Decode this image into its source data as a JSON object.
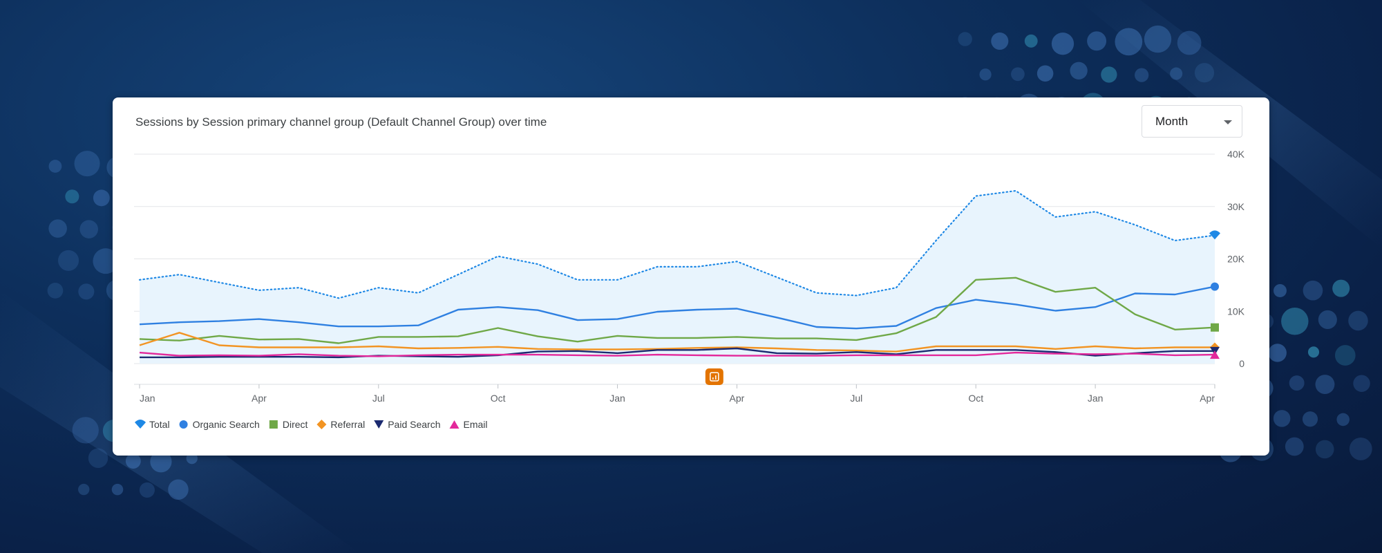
{
  "card": {
    "title": "Sessions by Session primary channel group (Default Channel Group) over time",
    "granularity_select": {
      "selected": "Month"
    }
  },
  "chart_data": {
    "type": "line",
    "x": [
      "Jan",
      "Feb",
      "Mar",
      "Apr",
      "May",
      "Jun",
      "Jul",
      "Aug",
      "Sep",
      "Oct",
      "Nov",
      "Dec",
      "Jan",
      "Feb",
      "Mar",
      "Apr",
      "May",
      "Jun",
      "Jul",
      "Aug",
      "Sep",
      "Oct",
      "Nov",
      "Dec",
      "Jan",
      "Feb",
      "Mar",
      "Apr"
    ],
    "x_tick_labels": [
      {
        "index": 0,
        "label": "Jan"
      },
      {
        "index": 3,
        "label": "Apr"
      },
      {
        "index": 6,
        "label": "Jul"
      },
      {
        "index": 9,
        "label": "Oct"
      },
      {
        "index": 12,
        "label": "Jan"
      },
      {
        "index": 15,
        "label": "Apr"
      },
      {
        "index": 18,
        "label": "Jul"
      },
      {
        "index": 21,
        "label": "Oct"
      },
      {
        "index": 24,
        "label": "Jan"
      },
      {
        "index": 27,
        "label": "Apr"
      }
    ],
    "y_ticks": [
      {
        "value": 0,
        "label": "0"
      },
      {
        "value": 10000,
        "label": "10K"
      },
      {
        "value": 20000,
        "label": "20K"
      },
      {
        "value": 30000,
        "label": "30K"
      },
      {
        "value": 40000,
        "label": "40K"
      }
    ],
    "ylim": [
      0,
      40000
    ],
    "grid": true,
    "y_axis_side": "right",
    "legend_position": "bottom-left",
    "annotation_marker": {
      "index": 14,
      "color": "#e37400"
    },
    "series": [
      {
        "name": "Total",
        "style": "dotted-area",
        "color": "#1e88e5",
        "fill": "#e8f4fd",
        "marker": "pin",
        "values": [
          16000,
          17000,
          15500,
          14000,
          14500,
          12500,
          14500,
          13500,
          17000,
          20500,
          19000,
          16000,
          16000,
          18500,
          18500,
          19500,
          16500,
          13500,
          13000,
          14500,
          23500,
          32000,
          33000,
          28000,
          29000,
          26500,
          23500,
          24500
        ]
      },
      {
        "name": "Organic Search",
        "style": "solid",
        "color": "#2f80e1",
        "marker": "circle",
        "values": [
          7500,
          7900,
          8100,
          8500,
          7900,
          7100,
          7100,
          7300,
          10300,
          10800,
          10200,
          8300,
          8500,
          9900,
          10300,
          10500,
          8800,
          7000,
          6700,
          7200,
          10600,
          12200,
          11300,
          10100,
          10800,
          13400,
          13200,
          14700
        ]
      },
      {
        "name": "Direct",
        "style": "solid",
        "color": "#6fa847",
        "marker": "square",
        "values": [
          4700,
          4400,
          5300,
          4600,
          4700,
          3900,
          5100,
          5100,
          5200,
          6800,
          5200,
          4200,
          5300,
          4900,
          4900,
          5100,
          4800,
          4800,
          4500,
          5800,
          8900,
          16000,
          16400,
          13700,
          14500,
          9400,
          6500,
          6900
        ]
      },
      {
        "name": "Referral",
        "style": "solid",
        "color": "#f29423",
        "marker": "diamond",
        "values": [
          3500,
          5900,
          3500,
          3100,
          3100,
          3100,
          3300,
          2900,
          3000,
          3200,
          2800,
          2700,
          2700,
          2800,
          3000,
          3100,
          2900,
          2600,
          2500,
          2300,
          3300,
          3300,
          3300,
          2800,
          3300,
          2900,
          3100,
          3100
        ]
      },
      {
        "name": "Paid Search",
        "style": "solid",
        "color": "#1b2a70",
        "marker": "triangle-down",
        "values": [
          1200,
          1200,
          1300,
          1300,
          1300,
          1200,
          1500,
          1400,
          1300,
          1600,
          2300,
          2400,
          2000,
          2600,
          2600,
          2900,
          2000,
          1900,
          2200,
          1800,
          2600,
          2600,
          2600,
          2200,
          1500,
          2000,
          2400,
          2400
        ]
      },
      {
        "name": "Email",
        "style": "solid",
        "color": "#e3289b",
        "marker": "triangle-up",
        "values": [
          2100,
          1500,
          1600,
          1500,
          1800,
          1500,
          1400,
          1600,
          1700,
          1700,
          1700,
          1600,
          1500,
          1700,
          1600,
          1500,
          1500,
          1500,
          1600,
          1600,
          1600,
          1600,
          2100,
          1900,
          1800,
          1900,
          1600,
          1700
        ]
      }
    ]
  }
}
